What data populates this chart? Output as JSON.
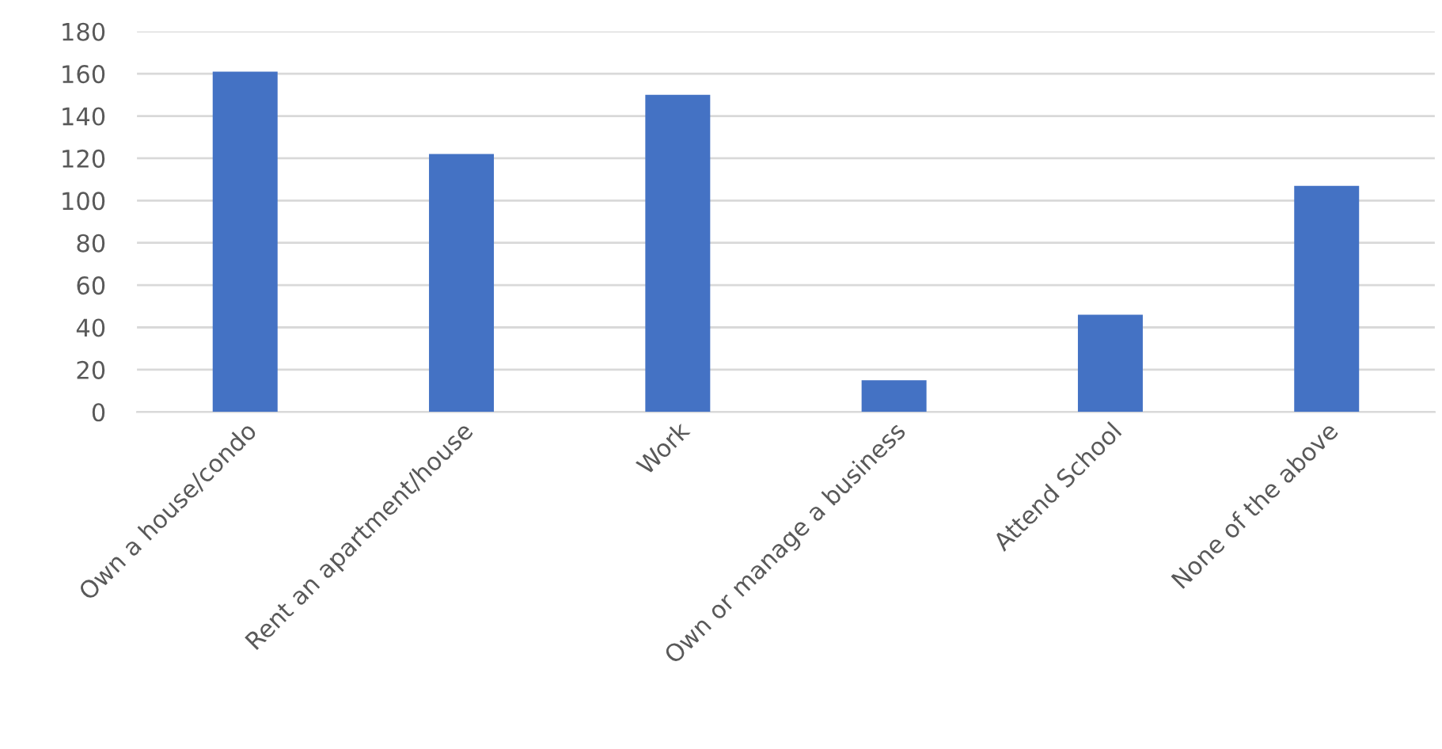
{
  "chart_data": {
    "type": "bar",
    "categories": [
      "Own a house/condo",
      "Rent an apartment/house",
      "Work",
      "Own or manage a business",
      "Attend School",
      "None of the above"
    ],
    "values": [
      161,
      122,
      150,
      15,
      46,
      107
    ],
    "color": "#4472c4",
    "ylim": [
      0,
      180
    ],
    "yticks": [
      0,
      20,
      40,
      60,
      80,
      100,
      120,
      140,
      160,
      180
    ],
    "grid": "y"
  }
}
